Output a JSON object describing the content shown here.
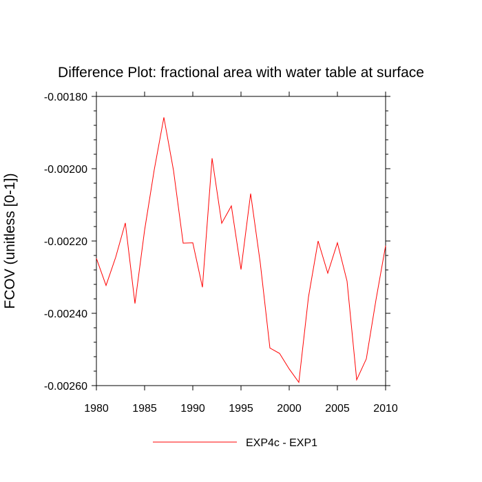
{
  "chart_data": {
    "type": "line",
    "title": "Difference Plot: fractional area with water table at surface",
    "xlabel": "",
    "ylabel": "FCOV  (unitless [0-1])",
    "xlim": [
      1980,
      2010
    ],
    "ylim": [
      -0.0026,
      -0.0018
    ],
    "xticks": [
      1980,
      1985,
      1990,
      1995,
      2000,
      2005,
      2010
    ],
    "xtick_labels": [
      "1980",
      "1985",
      "1990",
      "1995",
      "2000",
      "2005",
      "2010"
    ],
    "yticks": [
      -0.0018,
      -0.002,
      -0.0022,
      -0.0024,
      -0.0026
    ],
    "ytick_labels": [
      "-0.00180",
      "-0.00200",
      "-0.00220",
      "-0.00240",
      "-0.00260"
    ],
    "grid": false,
    "legend_position": "bottom",
    "series": [
      {
        "name": "EXP4c - EXP1",
        "color": "#ff0000",
        "x": [
          1980,
          1981,
          1982,
          1983,
          1984,
          1985,
          1986,
          1987,
          1988,
          1989,
          1990,
          1991,
          1992,
          1993,
          1994,
          1995,
          1996,
          1997,
          1998,
          1999,
          2000,
          2001,
          2002,
          2003,
          2004,
          2005,
          2006,
          2007,
          2008,
          2009,
          2010
        ],
        "values": [
          -0.002248,
          -0.002323,
          -0.002245,
          -0.00215,
          -0.002373,
          -0.00217,
          -0.002003,
          -0.001858,
          -0.002005,
          -0.002206,
          -0.002205,
          -0.002328,
          -0.001971,
          -0.002151,
          -0.002103,
          -0.002279,
          -0.002069,
          -0.002261,
          -0.002496,
          -0.002511,
          -0.002554,
          -0.002591,
          -0.002355,
          -0.0022,
          -0.002289,
          -0.002205,
          -0.002311,
          -0.002584,
          -0.002526,
          -0.002363,
          -0.002213
        ]
      }
    ]
  }
}
